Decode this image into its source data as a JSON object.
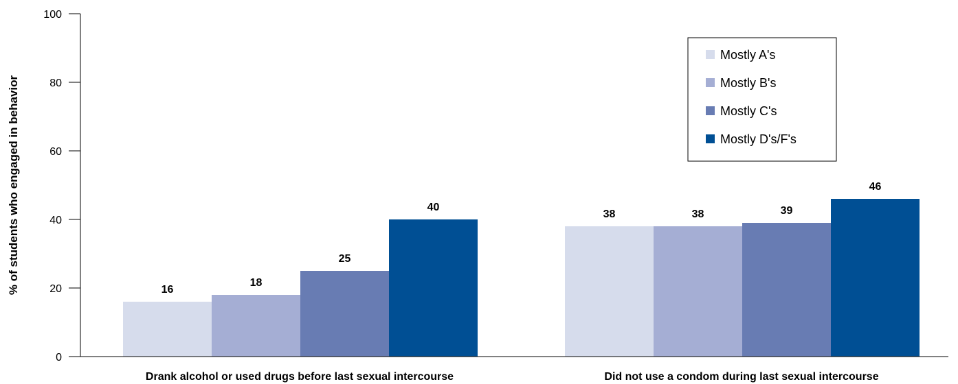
{
  "chart_data": {
    "type": "bar",
    "ylabel": "% of students who engaged in behavior",
    "xlabel": "",
    "ylim": [
      0,
      100
    ],
    "yticks": [
      0,
      20,
      40,
      60,
      80,
      100
    ],
    "categories": [
      "Drank alcohol or used drugs before last sexual intercourse",
      "Did not use a condom during last sexual intercourse"
    ],
    "series": [
      {
        "name": "Mostly A's",
        "values": [
          16,
          38
        ],
        "color": "#d6dcec"
      },
      {
        "name": "Mostly B's",
        "values": [
          18,
          38
        ],
        "color": "#a5aed4"
      },
      {
        "name": "Mostly C's",
        "values": [
          25,
          39
        ],
        "color": "#687cb3"
      },
      {
        "name": "Mostly D's/F's",
        "values": [
          40,
          46
        ],
        "color": "#004f94"
      }
    ],
    "legend_position": "top-right",
    "grid": false
  }
}
